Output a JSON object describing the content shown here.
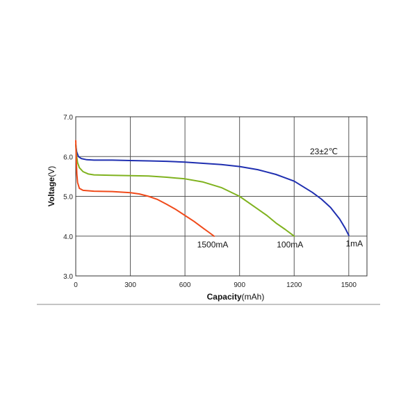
{
  "chart_data": {
    "type": "line",
    "ylabel": "Voltage",
    "ylabel_unit": "(V)",
    "xlabel": "Capacity",
    "xlabel_unit": "(mAh)",
    "annotation": "23±2℃",
    "xlim": [
      0,
      1600
    ],
    "ylim": [
      3.0,
      7.0
    ],
    "x_ticks": [
      0,
      300,
      600,
      900,
      1200,
      1500
    ],
    "x_tick_labels": [
      "0",
      "300",
      "600",
      "900",
      "1200",
      "1500"
    ],
    "y_ticks": [
      3.0,
      4.0,
      5.0,
      6.0,
      7.0
    ],
    "y_tick_labels": [
      "3.0",
      "4.0",
      "5.0",
      "6.0",
      "7.0"
    ],
    "grid": true,
    "series": [
      {
        "name": "1mA",
        "color": "#1f2fb0",
        "x": [
          0,
          5,
          15,
          30,
          60,
          100,
          200,
          300,
          400,
          500,
          600,
          700,
          800,
          900,
          1000,
          1100,
          1200,
          1300,
          1350,
          1400,
          1450,
          1480,
          1500
        ],
        "y": [
          6.3,
          6.12,
          6.0,
          5.95,
          5.92,
          5.91,
          5.91,
          5.9,
          5.89,
          5.88,
          5.86,
          5.83,
          5.8,
          5.75,
          5.67,
          5.55,
          5.38,
          5.1,
          4.93,
          4.72,
          4.43,
          4.2,
          4.02
        ]
      },
      {
        "name": "100mA",
        "color": "#7fb21e",
        "x": [
          0,
          5,
          10,
          20,
          40,
          70,
          100,
          200,
          300,
          400,
          500,
          600,
          700,
          800,
          900,
          1000,
          1050,
          1100,
          1150,
          1200
        ],
        "y": [
          6.3,
          6.0,
          5.85,
          5.72,
          5.62,
          5.56,
          5.54,
          5.53,
          5.52,
          5.51,
          5.48,
          5.44,
          5.36,
          5.22,
          5.0,
          4.68,
          4.52,
          4.33,
          4.17,
          4.0
        ]
      },
      {
        "name": "1500mA",
        "color": "#f04a1a",
        "x": [
          0,
          3,
          6,
          10,
          20,
          40,
          70,
          100,
          200,
          300,
          350,
          400,
          450,
          500,
          550,
          600,
          650,
          700,
          730,
          760
        ],
        "y": [
          6.4,
          5.9,
          5.55,
          5.35,
          5.2,
          5.15,
          5.14,
          5.13,
          5.12,
          5.09,
          5.06,
          5.0,
          4.92,
          4.8,
          4.67,
          4.52,
          4.37,
          4.2,
          4.1,
          4.0
        ]
      }
    ]
  }
}
